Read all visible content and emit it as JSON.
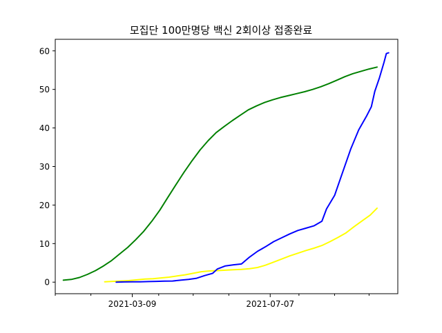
{
  "chart_data": {
    "type": "line",
    "title": "모집단 100만명당 백신 2회이상 접종완료",
    "xlabel": "",
    "ylabel": "",
    "x_ticks": [
      {
        "date": "2021-03-09",
        "label": "2021-03-09"
      },
      {
        "date": "2021-07-07",
        "label": "2021-07-07"
      }
    ],
    "x_minor_ticks": [
      "2021-01-01",
      "2021-02-01",
      "2021-04-01",
      "2021-05-01",
      "2021-06-01",
      "2021-08-01",
      "2021-09-01",
      "2021-10-01"
    ],
    "xlim": [
      "2021-01-01",
      "2021-10-26"
    ],
    "ylim": [
      -3,
      63
    ],
    "y_ticks": [
      0,
      10,
      20,
      30,
      40,
      50,
      60
    ],
    "grid": false,
    "legend": "none",
    "series": [
      {
        "color": "#008000",
        "points": [
          [
            "2021-01-08",
            0.5
          ],
          [
            "2021-01-15",
            0.7
          ],
          [
            "2021-01-22",
            1.2
          ],
          [
            "2021-01-29",
            2.0
          ],
          [
            "2021-02-05",
            3.0
          ],
          [
            "2021-02-12",
            4.2
          ],
          [
            "2021-02-19",
            5.6
          ],
          [
            "2021-02-26",
            7.3
          ],
          [
            "2021-03-05",
            9.0
          ],
          [
            "2021-03-12",
            11.0
          ],
          [
            "2021-03-19",
            13.2
          ],
          [
            "2021-03-26",
            15.8
          ],
          [
            "2021-04-02",
            18.7
          ],
          [
            "2021-04-09",
            22.0
          ],
          [
            "2021-04-16",
            25.3
          ],
          [
            "2021-04-23",
            28.5
          ],
          [
            "2021-04-30",
            31.5
          ],
          [
            "2021-05-07",
            34.3
          ],
          [
            "2021-05-14",
            36.7
          ],
          [
            "2021-05-21",
            38.8
          ],
          [
            "2021-05-28",
            40.4
          ],
          [
            "2021-06-04",
            41.9
          ],
          [
            "2021-06-11",
            43.3
          ],
          [
            "2021-06-18",
            44.7
          ],
          [
            "2021-06-25",
            45.7
          ],
          [
            "2021-07-02",
            46.6
          ],
          [
            "2021-07-09",
            47.3
          ],
          [
            "2021-07-16",
            47.9
          ],
          [
            "2021-07-23",
            48.4
          ],
          [
            "2021-07-30",
            48.9
          ],
          [
            "2021-08-06",
            49.4
          ],
          [
            "2021-08-13",
            50.0
          ],
          [
            "2021-08-20",
            50.7
          ],
          [
            "2021-08-27",
            51.5
          ],
          [
            "2021-09-03",
            52.4
          ],
          [
            "2021-09-10",
            53.3
          ],
          [
            "2021-09-17",
            54.1
          ],
          [
            "2021-09-24",
            54.7
          ],
          [
            "2021-10-01",
            55.3
          ],
          [
            "2021-10-08",
            55.8
          ]
        ]
      },
      {
        "color": "#ffff00",
        "points": [
          [
            "2021-02-13",
            0.1
          ],
          [
            "2021-02-20",
            0.2
          ],
          [
            "2021-02-27",
            0.3
          ],
          [
            "2021-03-06",
            0.4
          ],
          [
            "2021-03-13",
            0.6
          ],
          [
            "2021-03-20",
            0.8
          ],
          [
            "2021-03-27",
            0.9
          ],
          [
            "2021-04-03",
            1.1
          ],
          [
            "2021-04-10",
            1.3
          ],
          [
            "2021-04-17",
            1.6
          ],
          [
            "2021-04-24",
            1.9
          ],
          [
            "2021-05-01",
            2.3
          ],
          [
            "2021-05-08",
            2.7
          ],
          [
            "2021-05-15",
            2.9
          ],
          [
            "2021-05-22",
            3.0
          ],
          [
            "2021-05-29",
            3.1
          ],
          [
            "2021-06-05",
            3.2
          ],
          [
            "2021-06-12",
            3.3
          ],
          [
            "2021-06-19",
            3.5
          ],
          [
            "2021-06-26",
            3.8
          ],
          [
            "2021-07-03",
            4.4
          ],
          [
            "2021-07-10",
            5.2
          ],
          [
            "2021-07-17",
            6.0
          ],
          [
            "2021-07-24",
            6.8
          ],
          [
            "2021-07-31",
            7.5
          ],
          [
            "2021-08-07",
            8.2
          ],
          [
            "2021-08-14",
            8.8
          ],
          [
            "2021-08-21",
            9.5
          ],
          [
            "2021-08-28",
            10.5
          ],
          [
            "2021-09-04",
            11.6
          ],
          [
            "2021-09-11",
            12.8
          ],
          [
            "2021-09-18",
            14.4
          ],
          [
            "2021-09-25",
            15.9
          ],
          [
            "2021-10-02",
            17.4
          ],
          [
            "2021-10-08",
            19.2
          ]
        ]
      },
      {
        "color": "#0000ff",
        "points": [
          [
            "2021-02-23",
            0.0
          ],
          [
            "2021-03-02",
            0.05
          ],
          [
            "2021-03-09",
            0.1
          ],
          [
            "2021-03-16",
            0.1
          ],
          [
            "2021-03-23",
            0.15
          ],
          [
            "2021-03-30",
            0.2
          ],
          [
            "2021-04-06",
            0.25
          ],
          [
            "2021-04-13",
            0.3
          ],
          [
            "2021-04-20",
            0.5
          ],
          [
            "2021-04-27",
            0.7
          ],
          [
            "2021-05-04",
            1.0
          ],
          [
            "2021-05-11",
            1.7
          ],
          [
            "2021-05-18",
            2.3
          ],
          [
            "2021-05-22",
            3.4
          ],
          [
            "2021-05-29",
            4.2
          ],
          [
            "2021-06-05",
            4.5
          ],
          [
            "2021-06-12",
            4.7
          ],
          [
            "2021-06-19",
            6.5
          ],
          [
            "2021-06-26",
            8.0
          ],
          [
            "2021-07-03",
            9.2
          ],
          [
            "2021-07-10",
            10.5
          ],
          [
            "2021-07-17",
            11.5
          ],
          [
            "2021-07-24",
            12.5
          ],
          [
            "2021-07-31",
            13.4
          ],
          [
            "2021-08-07",
            14.0
          ],
          [
            "2021-08-14",
            14.6
          ],
          [
            "2021-08-21",
            15.8
          ],
          [
            "2021-08-25",
            19.0
          ],
          [
            "2021-09-01",
            22.5
          ],
          [
            "2021-09-08",
            28.5
          ],
          [
            "2021-09-15",
            34.5
          ],
          [
            "2021-09-22",
            39.5
          ],
          [
            "2021-09-29",
            43.2
          ],
          [
            "2021-10-03",
            45.5
          ],
          [
            "2021-10-06",
            49.5
          ],
          [
            "2021-10-10",
            53.0
          ],
          [
            "2021-10-14",
            57.0
          ],
          [
            "2021-10-16",
            59.3
          ],
          [
            "2021-10-18",
            59.5
          ]
        ]
      }
    ]
  }
}
